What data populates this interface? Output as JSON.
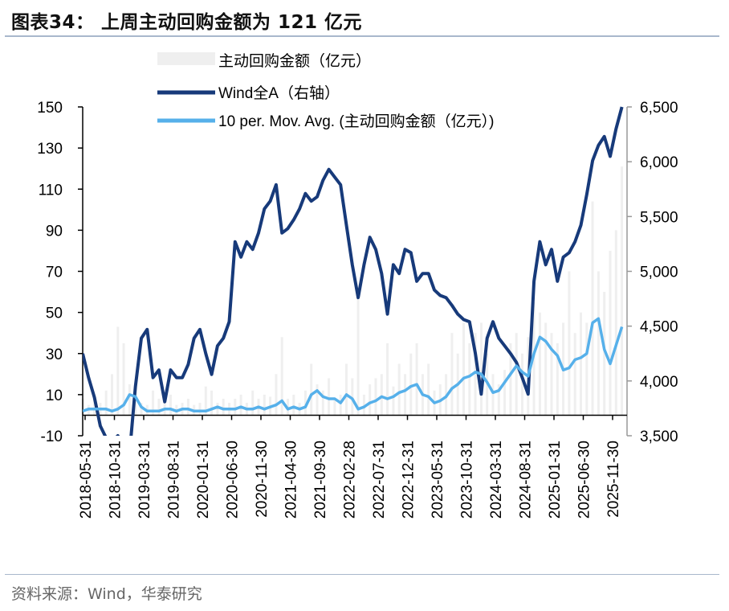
{
  "title": "图表34：  上周主动回购金额为 121 亿元",
  "source": "资料来源：Wind，华泰研究",
  "colors": {
    "bars": "#efefef",
    "wind_a": "#173a7a",
    "ma": "#56b0ea",
    "separator": "#a9b8cc"
  },
  "chart_data": {
    "type": "bar+line",
    "title": "",
    "legend": {
      "placement": "top-center",
      "entries": [
        "主动回购金额（亿元）",
        "Wind全A（右轴）",
        "10 per. Mov. Avg. (主动回购金额（亿元）)"
      ]
    },
    "grid": false,
    "left_axis": {
      "range": [
        -10,
        150
      ],
      "ticks": [
        "150",
        "130",
        "110",
        "90",
        "70",
        "50",
        "30",
        "10",
        "-10"
      ],
      "tick_values": [
        150,
        130,
        110,
        90,
        70,
        50,
        30,
        10,
        -10
      ]
    },
    "right_axis": {
      "range": [
        3500,
        6500
      ],
      "ticks": [
        "6,500",
        "6,000",
        "5,500",
        "5,000",
        "4,500",
        "4,000",
        "3,500"
      ],
      "tick_values": [
        6500,
        6000,
        5500,
        5000,
        4500,
        4000,
        3500
      ]
    },
    "x_tick_labels": [
      "2018-05-31",
      "2018-10-31",
      "2019-03-31",
      "2019-08-31",
      "2020-01-31",
      "2020-06-30",
      "2020-11-30",
      "2021-04-30",
      "2021-09-30",
      "2022-02-28",
      "2022-07-31",
      "2022-12-31",
      "2023-05-31",
      "2023-10-31",
      "2024-03-31",
      "2024-08-31",
      "2025-01-31",
      "2025-06-30",
      "2025-11-30"
    ],
    "x_start": "2018-05",
    "x": [
      "2018-05",
      "2018-06",
      "2018-07",
      "2018-08",
      "2018-09",
      "2018-10",
      "2018-11",
      "2018-12",
      "2019-01",
      "2019-02",
      "2019-03",
      "2019-04",
      "2019-05",
      "2019-06",
      "2019-07",
      "2019-08",
      "2019-09",
      "2019-10",
      "2019-11",
      "2019-12",
      "2020-01",
      "2020-02",
      "2020-03",
      "2020-04",
      "2020-05",
      "2020-06",
      "2020-07",
      "2020-08",
      "2020-09",
      "2020-10",
      "2020-11",
      "2020-12",
      "2021-01",
      "2021-02",
      "2021-03",
      "2021-04",
      "2021-05",
      "2021-06",
      "2021-07",
      "2021-08",
      "2021-09",
      "2021-10",
      "2021-11",
      "2021-12",
      "2022-01",
      "2022-02",
      "2022-03",
      "2022-04",
      "2022-05",
      "2022-06",
      "2022-07",
      "2022-08",
      "2022-09",
      "2022-10",
      "2022-11",
      "2022-12",
      "2023-01",
      "2023-02",
      "2023-03",
      "2023-04",
      "2023-05",
      "2023-06",
      "2023-07",
      "2023-08",
      "2023-09",
      "2023-10",
      "2023-11",
      "2023-12",
      "2024-01",
      "2024-02",
      "2024-03",
      "2024-04",
      "2024-05",
      "2024-06",
      "2024-07",
      "2024-08",
      "2024-09",
      "2024-10",
      "2024-11",
      "2024-12",
      "2025-01",
      "2025-02",
      "2025-03",
      "2025-04",
      "2025-05",
      "2025-06",
      "2025-07",
      "2025-08",
      "2025-09",
      "2025-10",
      "2025-11",
      "2025-12",
      "2026-01"
    ],
    "series": [
      {
        "name": "主动回购金额（亿元）",
        "type": "bar",
        "axis": "left",
        "values": [
          8,
          5,
          10,
          6,
          12,
          20,
          43,
          35,
          15,
          8,
          6,
          5,
          12,
          8,
          6,
          10,
          5,
          6,
          8,
          5,
          6,
          14,
          12,
          6,
          8,
          6,
          8,
          10,
          6,
          12,
          8,
          10,
          9,
          20,
          38,
          8,
          10,
          6,
          12,
          25,
          15,
          12,
          18,
          8,
          10,
          25,
          18,
          60,
          10,
          15,
          18,
          20,
          35,
          14,
          25,
          20,
          30,
          35,
          20,
          25,
          12,
          15,
          20,
          40,
          30,
          45,
          35,
          40,
          45,
          30,
          20,
          15,
          22,
          35,
          40,
          30,
          38,
          55,
          50,
          45,
          40,
          35,
          45,
          70,
          40,
          50,
          45,
          104,
          70,
          60,
          80,
          90,
          121
        ]
      },
      {
        "name": "Wind全A（右轴）",
        "type": "line",
        "axis": "right",
        "values": [
          4250,
          4030,
          3850,
          3590,
          3480,
          3450,
          3500,
          3400,
          3340,
          3950,
          4390,
          4470,
          4030,
          4100,
          3810,
          4100,
          4030,
          4030,
          4150,
          4390,
          4470,
          4250,
          4060,
          4320,
          4390,
          4540,
          5270,
          5130,
          5270,
          5200,
          5350,
          5570,
          5640,
          5790,
          5350,
          5390,
          5470,
          5570,
          5710,
          5640,
          5680,
          5830,
          5930,
          5860,
          5790,
          5420,
          5060,
          4760,
          5060,
          5310,
          5200,
          4980,
          4610,
          5060,
          4980,
          5200,
          5170,
          4910,
          4980,
          4980,
          4830,
          4780,
          4760,
          4690,
          4610,
          4560,
          4540,
          4250,
          3880,
          4390,
          4540,
          4390,
          4320,
          4250,
          4170,
          4030,
          3880,
          4910,
          5270,
          5060,
          5200,
          4910,
          5130,
          5170,
          5270,
          5420,
          5700,
          6010,
          6150,
          6230,
          6050,
          6300,
          6500
        ]
      },
      {
        "name": "10 per. Mov. Avg. (主动回购金额（亿元）)",
        "type": "line",
        "axis": "left",
        "values": [
          2,
          3,
          3,
          3,
          3,
          2,
          3,
          5,
          10,
          9,
          4,
          2,
          2,
          2,
          3,
          3,
          2,
          3,
          3,
          2,
          2,
          2,
          3,
          4,
          3,
          3,
          3,
          4,
          3,
          3,
          4,
          3,
          4,
          5,
          7,
          3,
          4,
          3,
          4,
          10,
          12,
          9,
          8,
          8,
          6,
          10,
          8,
          3,
          4,
          6,
          7,
          9,
          8,
          9,
          11,
          12,
          14,
          15,
          10,
          9,
          6,
          7,
          9,
          13,
          15,
          18,
          19,
          21,
          20,
          16,
          11,
          12,
          16,
          20,
          24,
          21,
          19,
          30,
          38,
          36,
          32,
          29,
          22,
          23,
          27,
          28,
          30,
          45,
          47,
          32,
          25,
          34,
          43
        ]
      }
    ]
  }
}
